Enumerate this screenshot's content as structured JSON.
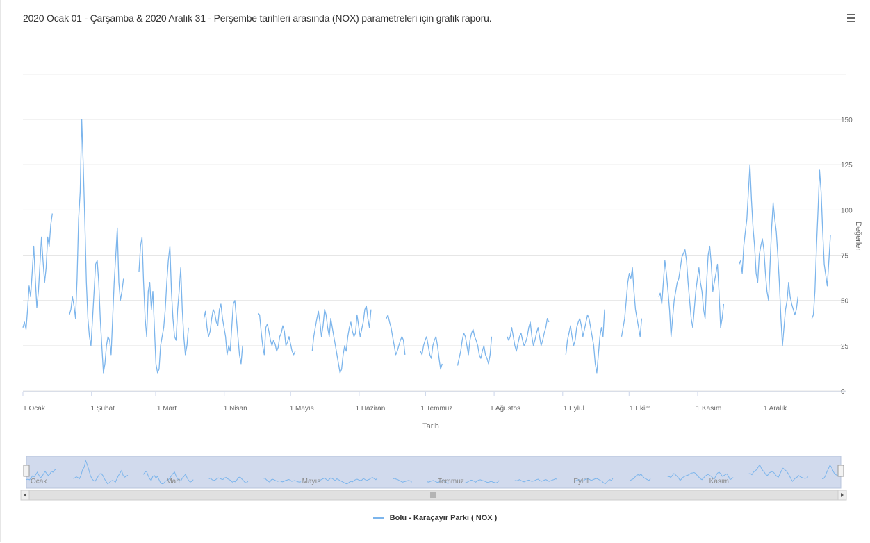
{
  "title": "2020 Ocak 01 - Çarşamba & 2020 Aralık 31 - Perşembe tarihleri arasında (NOX) parametreleri için grafik raporu.",
  "menu_icon": "hamburger-menu-icon",
  "colors": {
    "series": "#7cb5ec",
    "grid": "#e6e6e6",
    "navigator_mask": "#ccd6eb"
  },
  "chart_data": {
    "type": "line",
    "title": "2020 Ocak 01 - Çarşamba & 2020 Aralık 31 - Perşembe tarihleri arasında (NOX) parametreleri için grafik raporu.",
    "xlabel": "Tarih",
    "ylabel": "Değerler",
    "y_axis_side": "right",
    "ylim": [
      0,
      150
    ],
    "y_ticks": [
      "0",
      "25",
      "50",
      "75",
      "100",
      "125",
      "150"
    ],
    "x_ticks": [
      "1 Ocak",
      "1 Şubat",
      "1 Mart",
      "1 Nisan",
      "1 Mayıs",
      "1 Haziran",
      "1 Temmuz",
      "1 Ağustos",
      "1 Eylül",
      "1 Ekim",
      "1 Kasım",
      "1 Aralık"
    ],
    "grid": true,
    "legend": "bottom-center",
    "navigator": {
      "labels": [
        "Ocak",
        "Mart",
        "Mayıs",
        "Temmuz",
        "Eylül",
        "Kasım"
      ],
      "scroll_center_icon": "grip-icon"
    },
    "series": [
      {
        "name": "Bolu - Karaçayır Parkı ( NOX )",
        "x_start": "2020-01-01",
        "x_end": "2020-12-31",
        "values": [
          35,
          38,
          34,
          45,
          58,
          52,
          66,
          80,
          62,
          46,
          55,
          70,
          85,
          72,
          60,
          68,
          85,
          80,
          92,
          98,
          null,
          null,
          null,
          null,
          null,
          null,
          null,
          null,
          null,
          null,
          42,
          45,
          52,
          47,
          40,
          62,
          95,
          110,
          150,
          125,
          95,
          60,
          40,
          30,
          25,
          40,
          55,
          70,
          72,
          60,
          40,
          25,
          10,
          15,
          25,
          30,
          28,
          20,
          40,
          60,
          75,
          90,
          60,
          50,
          55,
          62,
          null,
          null,
          null,
          null,
          null,
          null,
          null,
          null,
          null,
          66,
          80,
          85,
          60,
          40,
          30,
          55,
          60,
          45,
          55,
          35,
          15,
          10,
          12,
          25,
          30,
          35,
          45,
          60,
          72,
          80,
          55,
          40,
          30,
          28,
          45,
          55,
          68,
          45,
          30,
          20,
          25,
          35,
          null,
          null,
          null,
          null,
          null,
          null,
          null,
          null,
          null,
          40,
          44,
          35,
          30,
          33,
          40,
          45,
          43,
          38,
          36,
          45,
          48,
          40,
          35,
          30,
          20,
          25,
          22,
          35,
          48,
          50,
          40,
          30,
          20,
          15,
          25,
          null,
          null,
          null,
          null,
          null,
          null,
          null,
          null,
          null,
          43,
          42,
          33,
          25,
          20,
          35,
          37,
          33,
          28,
          25,
          28,
          26,
          22,
          24,
          30,
          32,
          36,
          33,
          25,
          27,
          30,
          26,
          22,
          20,
          22,
          null,
          null,
          null,
          null,
          null,
          null,
          null,
          null,
          null,
          null,
          22,
          30,
          35,
          40,
          44,
          38,
          30,
          36,
          45,
          42,
          35,
          30,
          40,
          35,
          30,
          25,
          20,
          15,
          10,
          12,
          20,
          25,
          22,
          30,
          35,
          38,
          33,
          30,
          32,
          42,
          36,
          30,
          34,
          38,
          45,
          47,
          40,
          35,
          45,
          null,
          null,
          null,
          null,
          null,
          null,
          null,
          null,
          null,
          40,
          42,
          38,
          35,
          30,
          25,
          20,
          22,
          25,
          28,
          30,
          28,
          20,
          null,
          null,
          null,
          null,
          null,
          null,
          null,
          null,
          null,
          22,
          20,
          25,
          28,
          30,
          25,
          20,
          18,
          25,
          28,
          30,
          25,
          18,
          12,
          15,
          null,
          null,
          null,
          null,
          null,
          null,
          null,
          null,
          null,
          14,
          18,
          22,
          28,
          32,
          30,
          25,
          20,
          28,
          32,
          34,
          30,
          28,
          25,
          20,
          18,
          22,
          25,
          20,
          18,
          15,
          20,
          30,
          null,
          null,
          null,
          null,
          null,
          null,
          null,
          null,
          null,
          30,
          28,
          30,
          35,
          30,
          25,
          22,
          26,
          30,
          32,
          28,
          25,
          27,
          30,
          35,
          38,
          30,
          25,
          28,
          32,
          35,
          30,
          25,
          28,
          32,
          35,
          40,
          38,
          null,
          null,
          null,
          null,
          null,
          null,
          null,
          null,
          null,
          null,
          20,
          28,
          32,
          36,
          30,
          25,
          28,
          35,
          38,
          40,
          36,
          30,
          34,
          38,
          42,
          40,
          35,
          30,
          25,
          15,
          10,
          20,
          30,
          35,
          30,
          45,
          null,
          null,
          null,
          null,
          null,
          null,
          null,
          null,
          null,
          null,
          30,
          35,
          40,
          50,
          60,
          65,
          62,
          68,
          55,
          45,
          40,
          35,
          30,
          40,
          null,
          null,
          null,
          null,
          null,
          null,
          null,
          null,
          null,
          null,
          52,
          54,
          48,
          60,
          72,
          65,
          55,
          45,
          30,
          40,
          50,
          55,
          60,
          62,
          68,
          74,
          76,
          78,
          72,
          60,
          50,
          40,
          35,
          45,
          55,
          62,
          68,
          60,
          55,
          45,
          40,
          60,
          75,
          80,
          70,
          55,
          60,
          65,
          70,
          55,
          35,
          40,
          48,
          null,
          null,
          null,
          null,
          null,
          null,
          null,
          null,
          null,
          70,
          72,
          65,
          80,
          88,
          95,
          110,
          125,
          105,
          90,
          80,
          65,
          60,
          75,
          80,
          84,
          78,
          65,
          55,
          50,
          70,
          90,
          104,
          95,
          88,
          75,
          60,
          40,
          25,
          35,
          45,
          50,
          60,
          52,
          48,
          45,
          42,
          45,
          52,
          null,
          null,
          null,
          null,
          null,
          null,
          null,
          null,
          40,
          42,
          55,
          80,
          100,
          122,
          110,
          88,
          70,
          64,
          58,
          72,
          86
        ]
      }
    ]
  },
  "legend_item": {
    "label": "Bolu - Karaçayır Parkı ( NOX )"
  }
}
